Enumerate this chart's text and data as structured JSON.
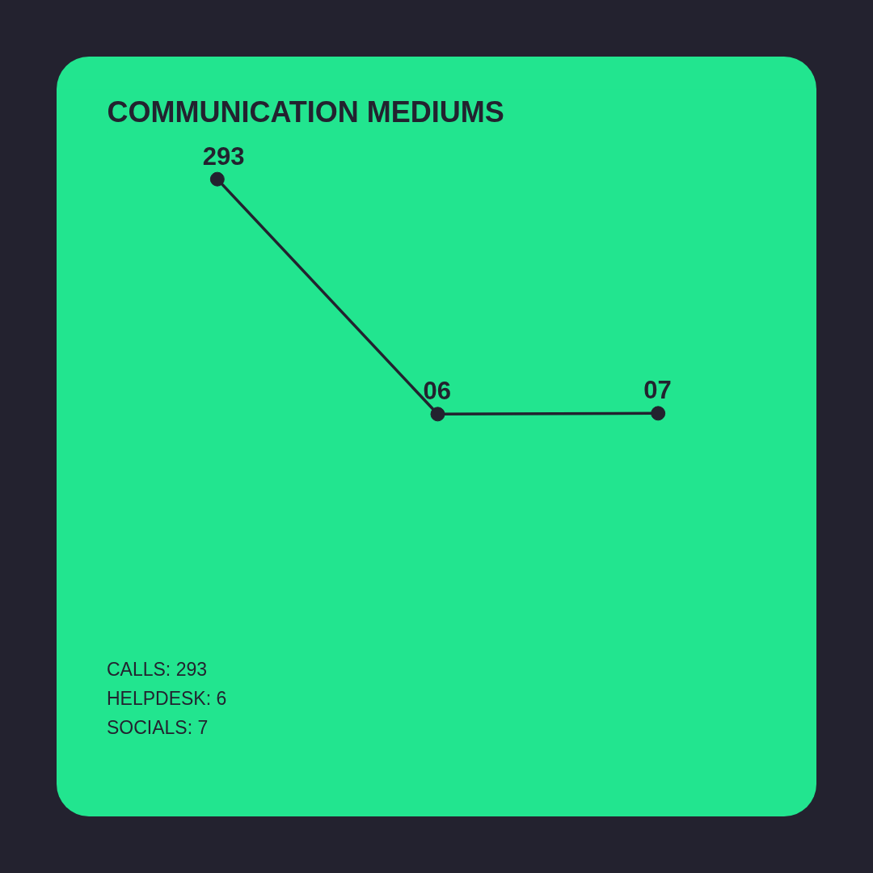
{
  "chart_data": {
    "type": "line",
    "title": "COMMUNICATION MEDIUMS",
    "categories": [
      null,
      null,
      null
    ],
    "series": [
      {
        "color": "#23222f",
        "values": [
          293,
          6,
          7
        ],
        "value_labels": [
          "293",
          "06",
          "07"
        ]
      }
    ],
    "tick_labels": false,
    "marker": "circle",
    "line_style": "solid",
    "annotations": [
      "CALLS: 293",
      "HELPDESK: 6",
      "SOCIALS: 7"
    ]
  }
}
